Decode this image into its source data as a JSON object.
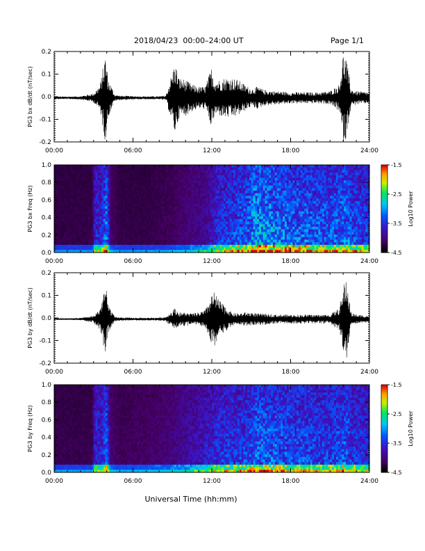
{
  "header": {
    "title": "2018/04/23  00:00–24:00 UT",
    "page": "Page 1/1"
  },
  "footer": {
    "xlabel": "Universal Time (hh:mm)"
  },
  "chart_data": [
    {
      "type": "line",
      "ylabel": "PG3 bx dB/dt (nT/sec)",
      "xlim": [
        0,
        24
      ],
      "ylim": [
        -0.2,
        0.2
      ],
      "x_ticks": [
        "00:00",
        "06:00",
        "12:00",
        "18:00",
        "24:00"
      ],
      "y_ticks": [
        "0.2",
        "0.1",
        "0.0",
        "-0.1",
        "-0.2"
      ],
      "series": [
        {
          "x": [
            0,
            1,
            2,
            3,
            3.5,
            3.9,
            4.1,
            4.6,
            5,
            6,
            7,
            8,
            8.5,
            9.2,
            9.5,
            10,
            10.5,
            11,
            11.5,
            12,
            12.2,
            12.6,
            13,
            13.5,
            14,
            14.5,
            15,
            15.5,
            16,
            17,
            18,
            19,
            20,
            21,
            21.7,
            22,
            22.2,
            22.6,
            23,
            24
          ],
          "amp": [
            0.006,
            0.006,
            0.007,
            0.02,
            0.06,
            0.2,
            0.09,
            0.015,
            0.01,
            0.008,
            0.007,
            0.007,
            0.01,
            0.16,
            0.09,
            0.08,
            0.06,
            0.05,
            0.05,
            0.14,
            0.08,
            0.08,
            0.09,
            0.09,
            0.08,
            0.06,
            0.04,
            0.05,
            0.035,
            0.03,
            0.025,
            0.025,
            0.025,
            0.03,
            0.06,
            0.2,
            0.19,
            0.04,
            0.03,
            0.025
          ]
        }
      ]
    },
    {
      "type": "heatmap",
      "ylabel": "PG3 bx Freq (Hz)",
      "xlim": [
        0,
        24
      ],
      "ylim": [
        0,
        1
      ],
      "x_ticks": [
        "00:00",
        "06:00",
        "12:00",
        "18:00",
        "24:00"
      ],
      "y_ticks": [
        "1.0",
        "0.8",
        "0.6",
        "0.4",
        "0.2",
        "0.0"
      ],
      "colorbar": {
        "label": "Log10 Power",
        "ticks": [
          "-1.5",
          "-2.5",
          "-3.5",
          "-4.5"
        ],
        "range": [
          -4.5,
          -1.5
        ]
      },
      "activity": {
        "x": [
          0,
          2.9,
          3.1,
          3.6,
          4.0,
          4.3,
          5,
          7,
          9,
          9.6,
          11.5,
          12.5,
          13,
          14,
          14.8,
          15.2,
          16,
          17,
          18,
          19,
          20,
          21,
          21.8,
          22.2,
          22.6,
          24
        ],
        "level": [
          0.05,
          0.05,
          0.35,
          0.35,
          0.55,
          0.1,
          0.05,
          0.05,
          0.08,
          0.12,
          0.2,
          0.38,
          0.4,
          0.45,
          0.5,
          0.62,
          0.58,
          0.55,
          0.5,
          0.5,
          0.48,
          0.48,
          0.5,
          0.55,
          0.45,
          0.42
        ]
      }
    },
    {
      "type": "line",
      "ylabel": "PG3 by dB/dt (nT/sec)",
      "xlim": [
        0,
        24
      ],
      "ylim": [
        -0.2,
        0.2
      ],
      "x_ticks": [
        "00:00",
        "06:00",
        "12:00",
        "18:00",
        "24:00"
      ],
      "y_ticks": [
        "0.2",
        "0.1",
        "0.0",
        "-0.1",
        "-0.2"
      ],
      "series": [
        {
          "x": [
            0,
            1,
            2,
            3,
            3.5,
            3.9,
            4.1,
            4.6,
            5,
            6,
            7,
            8,
            8.5,
            9.2,
            9.5,
            10,
            10.5,
            11,
            11.5,
            12,
            12.2,
            12.6,
            13,
            13.5,
            14,
            14.5,
            15,
            15.5,
            16,
            17,
            18,
            19,
            20,
            21,
            21.7,
            22,
            22.2,
            22.6,
            23,
            24
          ],
          "amp": [
            0.004,
            0.004,
            0.005,
            0.015,
            0.05,
            0.16,
            0.07,
            0.01,
            0.008,
            0.006,
            0.006,
            0.007,
            0.01,
            0.05,
            0.03,
            0.03,
            0.025,
            0.03,
            0.04,
            0.11,
            0.12,
            0.08,
            0.06,
            0.03,
            0.025,
            0.03,
            0.03,
            0.025,
            0.025,
            0.02,
            0.02,
            0.02,
            0.02,
            0.02,
            0.05,
            0.13,
            0.2,
            0.03,
            0.02,
            0.015
          ]
        }
      ]
    },
    {
      "type": "heatmap",
      "ylabel": "PG3 by Freq (Hz)",
      "xlim": [
        0,
        24
      ],
      "ylim": [
        0,
        1
      ],
      "x_ticks": [
        "00:00",
        "06:00",
        "12:00",
        "18:00",
        "24:00"
      ],
      "y_ticks": [
        "1.0",
        "0.8",
        "0.6",
        "0.4",
        "0.2",
        "0.0"
      ],
      "colorbar": {
        "label": "Log10 Power",
        "ticks": [
          "-1.5",
          "-2.5",
          "-3.5",
          "-4.5"
        ],
        "range": [
          -4.5,
          -1.5
        ]
      },
      "activity": {
        "x": [
          0,
          2.9,
          3.1,
          3.6,
          4.0,
          4.3,
          5,
          7,
          9,
          9.6,
          11.5,
          12.5,
          13,
          14,
          14.8,
          15.2,
          16,
          17,
          18,
          19,
          20,
          21,
          21.8,
          22.2,
          22.6,
          24
        ],
        "level": [
          0.06,
          0.06,
          0.35,
          0.35,
          0.5,
          0.12,
          0.08,
          0.1,
          0.15,
          0.2,
          0.3,
          0.38,
          0.4,
          0.4,
          0.42,
          0.5,
          0.5,
          0.48,
          0.45,
          0.45,
          0.42,
          0.42,
          0.45,
          0.5,
          0.4,
          0.38
        ]
      }
    }
  ]
}
